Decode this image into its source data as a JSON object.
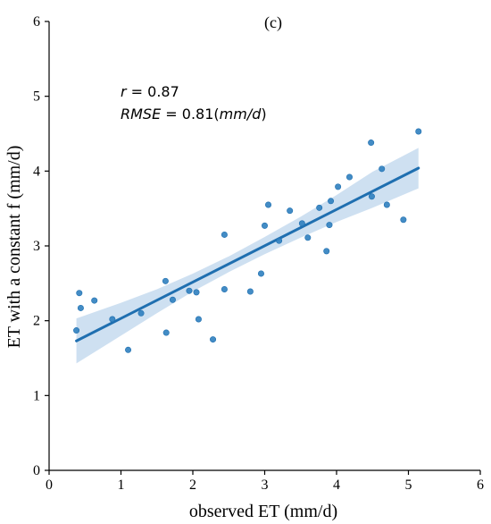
{
  "chart_data": {
    "type": "scatter",
    "panel_label": "(c)",
    "xlabel": "observed ET (mm/d)",
    "ylabel": "ET with a constant f (mm/d)",
    "xlim": [
      0,
      6
    ],
    "ylim": [
      0,
      6
    ],
    "x_ticks": [
      "0",
      "1",
      "2",
      "3",
      "4",
      "5",
      "6"
    ],
    "y_ticks": [
      "0",
      "1",
      "2",
      "3",
      "4",
      "5",
      "6"
    ],
    "grid": false,
    "annotations": {
      "r": {
        "symbol": "r",
        "text": " = 0.87"
      },
      "rmse": {
        "symbol": "RMSE",
        "text_before_unit": " = 0.81(",
        "unit": "mm/d",
        "text_after_unit": ")"
      }
    },
    "points": [
      {
        "x": 0.38,
        "y": 1.87
      },
      {
        "x": 0.42,
        "y": 2.37
      },
      {
        "x": 0.44,
        "y": 2.17
      },
      {
        "x": 0.63,
        "y": 2.27
      },
      {
        "x": 0.88,
        "y": 2.02
      },
      {
        "x": 1.1,
        "y": 1.61
      },
      {
        "x": 1.28,
        "y": 2.1
      },
      {
        "x": 1.62,
        "y": 2.53
      },
      {
        "x": 1.63,
        "y": 1.84
      },
      {
        "x": 1.72,
        "y": 2.28
      },
      {
        "x": 1.95,
        "y": 2.4
      },
      {
        "x": 2.05,
        "y": 2.38
      },
      {
        "x": 2.08,
        "y": 2.02
      },
      {
        "x": 2.28,
        "y": 1.75
      },
      {
        "x": 2.44,
        "y": 3.15
      },
      {
        "x": 2.44,
        "y": 2.42
      },
      {
        "x": 2.8,
        "y": 2.39
      },
      {
        "x": 2.95,
        "y": 2.63
      },
      {
        "x": 3.0,
        "y": 3.27
      },
      {
        "x": 3.05,
        "y": 3.55
      },
      {
        "x": 3.2,
        "y": 3.07
      },
      {
        "x": 3.35,
        "y": 3.47
      },
      {
        "x": 3.52,
        "y": 3.3
      },
      {
        "x": 3.6,
        "y": 3.11
      },
      {
        "x": 3.76,
        "y": 3.51
      },
      {
        "x": 3.86,
        "y": 2.93
      },
      {
        "x": 3.9,
        "y": 3.28
      },
      {
        "x": 3.92,
        "y": 3.6
      },
      {
        "x": 4.02,
        "y": 3.79
      },
      {
        "x": 4.18,
        "y": 3.92
      },
      {
        "x": 4.48,
        "y": 4.38
      },
      {
        "x": 4.49,
        "y": 3.66
      },
      {
        "x": 4.63,
        "y": 4.03
      },
      {
        "x": 4.7,
        "y": 3.55
      },
      {
        "x": 4.93,
        "y": 3.35
      },
      {
        "x": 5.14,
        "y": 4.53
      }
    ],
    "regression": {
      "x": [
        0.38,
        5.14
      ],
      "y": [
        1.73,
        4.04
      ]
    },
    "confidence_band": [
      {
        "x": 0.38,
        "lower": 1.43,
        "upper": 2.03
      },
      {
        "x": 1.0,
        "lower": 1.8,
        "upper": 2.24
      },
      {
        "x": 1.5,
        "lower": 2.1,
        "upper": 2.42
      },
      {
        "x": 2.0,
        "lower": 2.39,
        "upper": 2.63
      },
      {
        "x": 2.5,
        "lower": 2.65,
        "upper": 2.86
      },
      {
        "x": 3.0,
        "lower": 2.89,
        "upper": 3.12
      },
      {
        "x": 3.5,
        "lower": 3.11,
        "upper": 3.39
      },
      {
        "x": 4.0,
        "lower": 3.32,
        "upper": 3.68
      },
      {
        "x": 4.5,
        "lower": 3.51,
        "upper": 3.99
      },
      {
        "x": 5.14,
        "lower": 3.77,
        "upper": 4.31
      }
    ],
    "colors": {
      "points": "#2f7fbf",
      "line": "#1f6fb0",
      "band": "#c9ddf0",
      "axis": "#000000"
    }
  }
}
